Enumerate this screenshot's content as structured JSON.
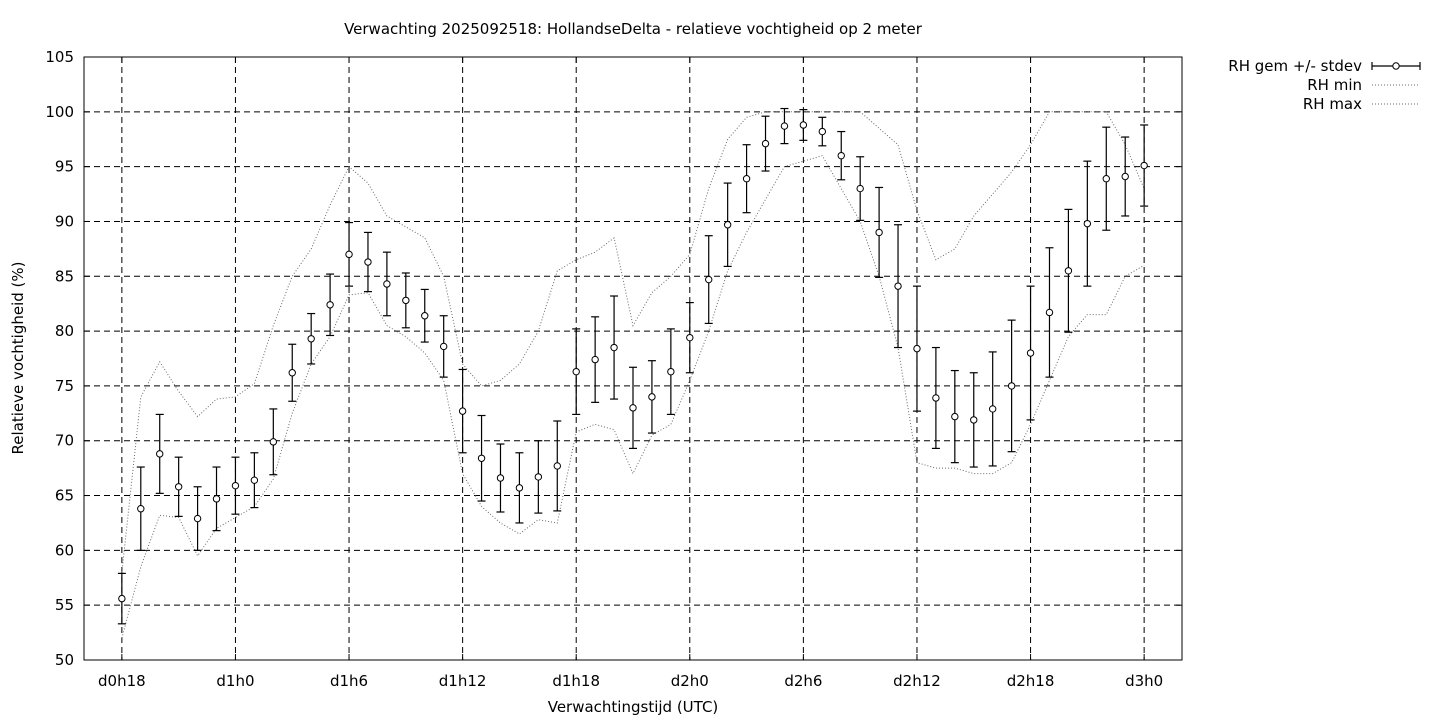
{
  "chart_data": {
    "type": "line",
    "title": "Verwachting 2025092518: HollandseDelta - relatieve vochtigheid op 2 meter",
    "xlabel": "Verwachtingstijd (UTC)",
    "ylabel": "Relatieve vochtigheid (%)",
    "ylim": [
      50,
      105
    ],
    "yticks": [
      50,
      55,
      60,
      65,
      70,
      75,
      80,
      85,
      90,
      95,
      100,
      105
    ],
    "xlim": [
      16,
      74
    ],
    "xticks": [
      {
        "x": 18,
        "label": "d0h18"
      },
      {
        "x": 24,
        "label": "d1h0"
      },
      {
        "x": 30,
        "label": "d1h6"
      },
      {
        "x": 36,
        "label": "d1h12"
      },
      {
        "x": 42,
        "label": "d1h18"
      },
      {
        "x": 48,
        "label": "d2h0"
      },
      {
        "x": 54,
        "label": "d2h6"
      },
      {
        "x": 60,
        "label": "d2h12"
      },
      {
        "x": 66,
        "label": "d2h18"
      },
      {
        "x": 72,
        "label": "d3h0"
      }
    ],
    "grid": true,
    "legend_position": "top-right-outside",
    "series": [
      {
        "name": "RH gem +/- stdev",
        "style": "errorbars",
        "x": [
          18,
          19,
          20,
          21,
          22,
          23,
          24,
          25,
          26,
          27,
          28,
          29,
          30,
          31,
          32,
          33,
          34,
          35,
          36,
          37,
          38,
          39,
          40,
          41,
          42,
          43,
          44,
          45,
          46,
          47,
          48,
          49,
          50,
          51,
          52,
          53,
          54,
          55,
          56,
          57,
          58,
          59,
          60,
          61,
          62,
          63,
          64,
          65,
          66,
          67,
          68,
          69,
          70,
          71,
          72
        ],
        "y": [
          55.6,
          63.8,
          68.8,
          65.8,
          62.9,
          64.7,
          65.9,
          66.4,
          69.9,
          76.2,
          79.3,
          82.4,
          87.0,
          86.3,
          84.3,
          82.8,
          81.4,
          78.6,
          72.7,
          68.4,
          66.6,
          65.7,
          66.7,
          67.7,
          76.3,
          77.4,
          78.5,
          73.0,
          74.0,
          76.3,
          79.4,
          84.7,
          89.7,
          93.9,
          97.1,
          98.7,
          98.8,
          98.2,
          96.0,
          93.0,
          89.0,
          84.1,
          78.4,
          73.9,
          72.2,
          71.9,
          72.9,
          75.0,
          78.0,
          81.7,
          85.5,
          89.8,
          93.9,
          94.1,
          95.1
        ],
        "err": [
          2.3,
          3.8,
          3.6,
          2.7,
          2.9,
          2.9,
          2.6,
          2.5,
          3.0,
          2.6,
          2.3,
          2.8,
          2.9,
          2.7,
          2.9,
          2.5,
          2.4,
          2.8,
          3.8,
          3.9,
          3.1,
          3.2,
          3.3,
          4.1,
          3.9,
          3.9,
          4.7,
          3.7,
          3.3,
          3.9,
          3.2,
          4.0,
          3.8,
          3.1,
          2.5,
          1.6,
          1.4,
          1.3,
          2.2,
          2.9,
          4.1,
          5.6,
          5.7,
          4.6,
          4.2,
          4.3,
          5.2,
          6.0,
          6.1,
          5.9,
          5.6,
          5.7,
          4.7,
          3.6,
          3.7
        ]
      },
      {
        "name": "RH min",
        "style": "dotted",
        "x": [
          18,
          19,
          20,
          21,
          22,
          23,
          24,
          25,
          26,
          27,
          28,
          29,
          30,
          31,
          32,
          33,
          34,
          35,
          36,
          37,
          38,
          39,
          40,
          41,
          42,
          43,
          44,
          45,
          46,
          47,
          48,
          49,
          50,
          51,
          52,
          53,
          54,
          55,
          56,
          57,
          58,
          59,
          60,
          61,
          62,
          63,
          64,
          65,
          66,
          67,
          68,
          69,
          70,
          71,
          72
        ],
        "y": [
          52.0,
          58.5,
          63.2,
          63.0,
          59.5,
          62.0,
          63.0,
          64.0,
          66.5,
          72.5,
          77.0,
          79.5,
          83.3,
          83.5,
          80.5,
          79.5,
          78.0,
          75.5,
          67.0,
          64.0,
          62.5,
          61.5,
          62.8,
          62.5,
          70.8,
          71.5,
          71.0,
          67.0,
          70.5,
          71.5,
          75.5,
          80.0,
          85.5,
          89.0,
          92.0,
          95.0,
          95.5,
          96.0,
          93.0,
          90.0,
          85.0,
          78.5,
          68.0,
          67.5,
          67.5,
          67.0,
          67.0,
          68.0,
          71.5,
          75.5,
          79.5,
          81.5,
          81.5,
          85.0,
          86.0
        ]
      },
      {
        "name": "RH max",
        "style": "dotted",
        "x": [
          18,
          19,
          20,
          21,
          22,
          23,
          24,
          25,
          26,
          27,
          28,
          29,
          30,
          31,
          32,
          33,
          34,
          35,
          36,
          37,
          38,
          39,
          40,
          41,
          42,
          43,
          44,
          45,
          46,
          47,
          48,
          49,
          50,
          51,
          52,
          53,
          54,
          55,
          56,
          57,
          58,
          59,
          60,
          61,
          62,
          63,
          64,
          65,
          66,
          67,
          68,
          69,
          70,
          71,
          72
        ],
        "y": [
          58.0,
          74.0,
          77.2,
          74.5,
          72.2,
          73.8,
          74.0,
          75.2,
          80.5,
          85.0,
          87.5,
          91.5,
          95.0,
          93.5,
          90.5,
          89.5,
          88.5,
          85.0,
          77.0,
          75.0,
          75.5,
          77.0,
          80.0,
          85.5,
          86.5,
          87.2,
          88.5,
          80.5,
          83.5,
          85.0,
          87.0,
          93.0,
          97.5,
          99.5,
          100.0,
          100.0,
          100.0,
          100.0,
          100.0,
          100.0,
          98.5,
          97.0,
          91.0,
          86.5,
          87.5,
          90.5,
          92.5,
          94.5,
          97.0,
          100.0,
          100.0,
          100.0,
          100.0,
          97.0,
          93.0
        ]
      }
    ]
  }
}
